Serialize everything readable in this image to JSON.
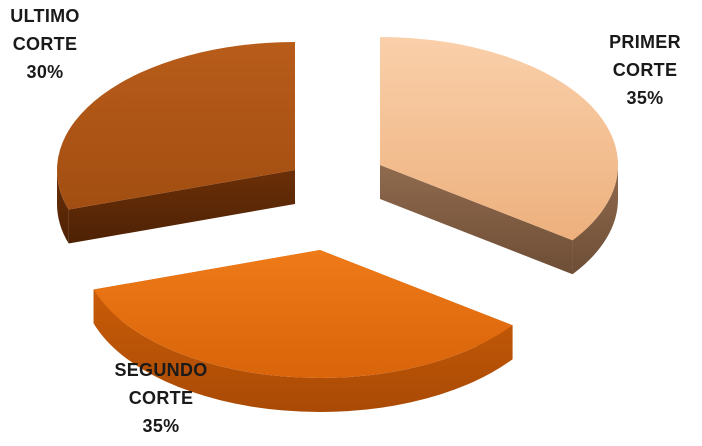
{
  "chart_data": {
    "type": "pie",
    "style": "3d-exploded",
    "slices": [
      {
        "name": "PRIMER CORTE",
        "label_line1": "PRIMER",
        "label_line2": "CORTE",
        "value": 35,
        "value_label": "35%",
        "color": "#F2BA8B"
      },
      {
        "name": "SEGUNDO CORTE",
        "label_line1": "SEGUNDO",
        "label_line2": "CORTE",
        "value": 35,
        "value_label": "35%",
        "color": "#E46C0A"
      },
      {
        "name": "ULTIMO CORTE",
        "label_line1": "ULTIMO",
        "label_line2": "CORTE",
        "value": 30,
        "value_label": "30%",
        "color": "#B45A17"
      }
    ],
    "legend": "none"
  }
}
